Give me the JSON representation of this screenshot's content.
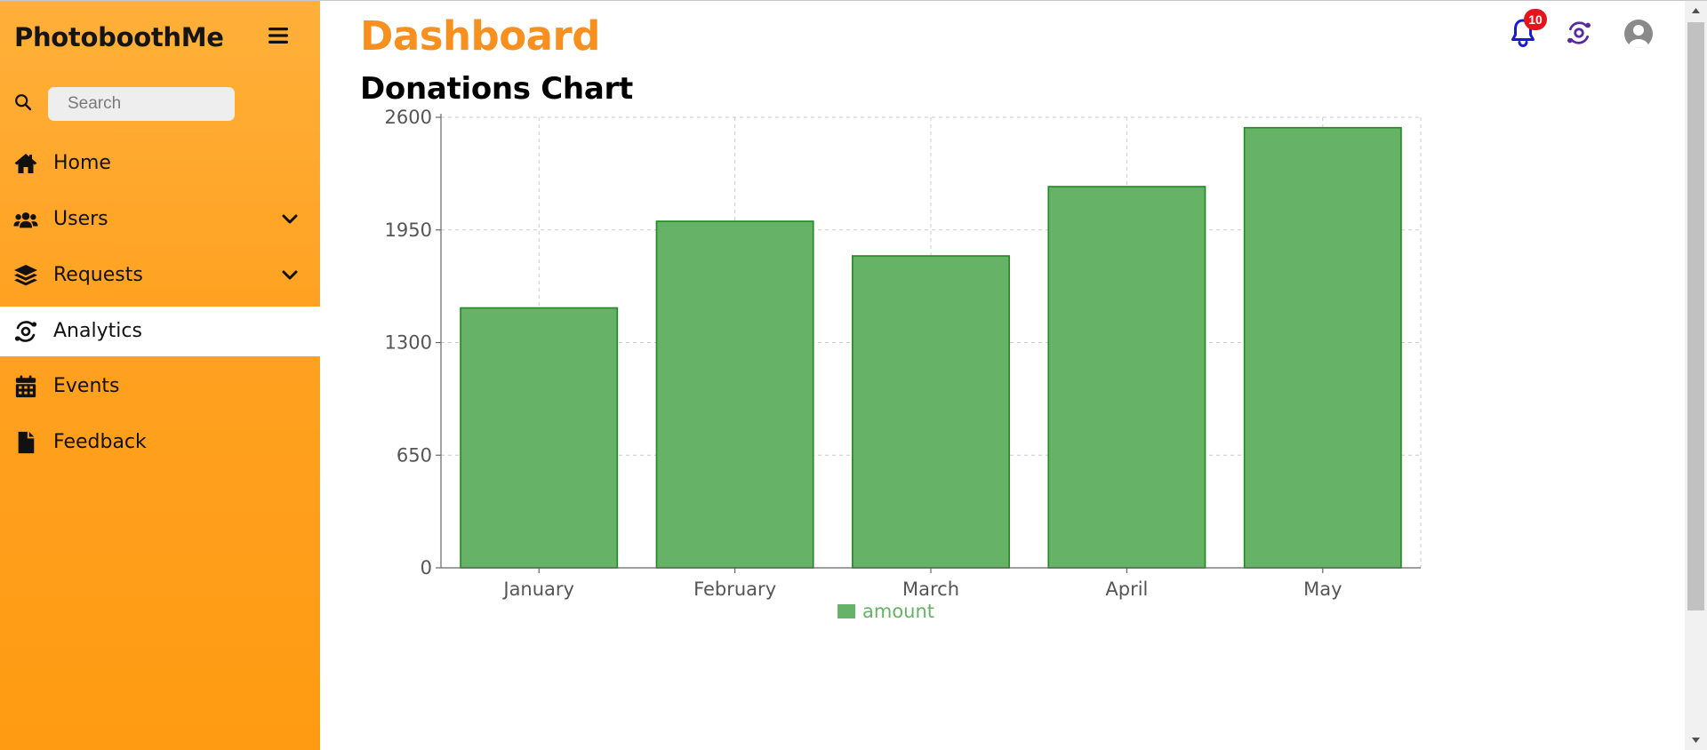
{
  "sidebar": {
    "brand": "PhotoboothMe",
    "search_placeholder": "Search",
    "items": [
      {
        "label": "Home",
        "icon": "home-icon",
        "expandable": false,
        "active": false
      },
      {
        "label": "Users",
        "icon": "users-icon",
        "expandable": true,
        "active": false
      },
      {
        "label": "Requests",
        "icon": "layers-icon",
        "expandable": true,
        "active": false
      },
      {
        "label": "Analytics",
        "icon": "analytics-icon",
        "expandable": false,
        "active": true
      },
      {
        "label": "Events",
        "icon": "calendar-icon",
        "expandable": false,
        "active": false
      },
      {
        "label": "Feedback",
        "icon": "file-icon",
        "expandable": false,
        "active": false
      }
    ]
  },
  "header": {
    "title": "Dashboard",
    "notification_count": "10",
    "icons": [
      "bell-icon",
      "analytics-icon",
      "user-avatar-icon"
    ]
  },
  "colors": {
    "accent": "#f7901e",
    "bar_fill": "#66b266",
    "bar_stroke": "#1f8a1f",
    "badge": "#e3141c",
    "bell": "#1a1ad6",
    "analytics_icon": "#5a2aa0"
  },
  "chart_data": {
    "type": "bar",
    "title": "Donations Chart",
    "categories": [
      "January",
      "February",
      "March",
      "April",
      "May"
    ],
    "series": [
      {
        "name": "amount",
        "values": [
          1500,
          2000,
          1800,
          2200,
          2540
        ]
      }
    ],
    "ylim": [
      0,
      2600
    ],
    "yticks": [
      "0",
      "650",
      "1300",
      "1950",
      "2600"
    ],
    "grid": true,
    "legend": "bottom-center"
  }
}
